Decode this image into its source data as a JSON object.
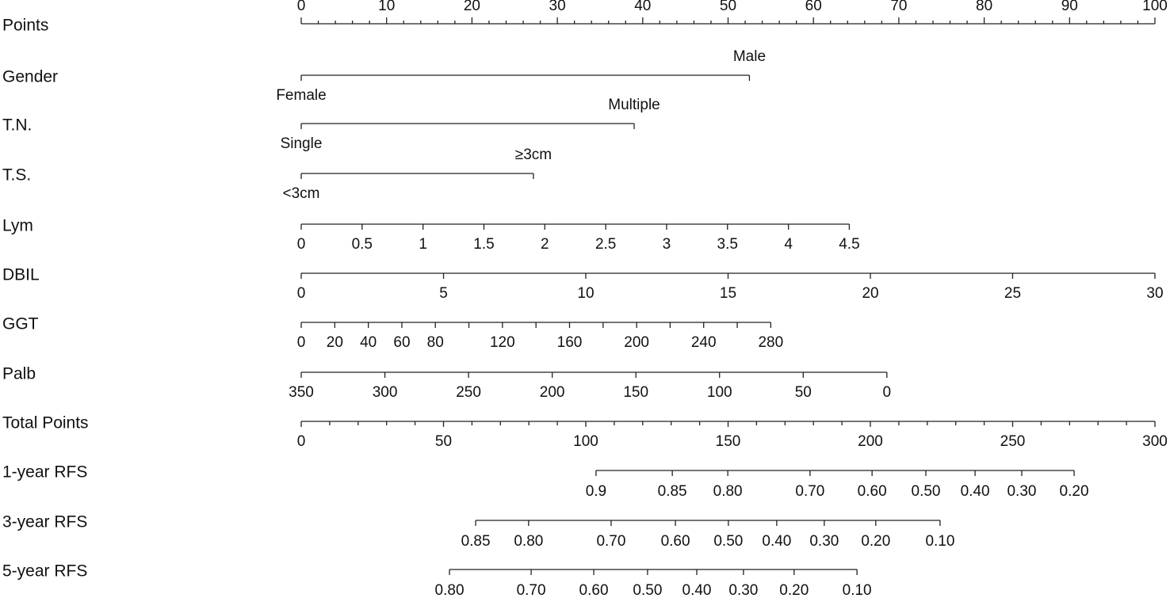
{
  "chart_data": {
    "type": "nomogram",
    "points_axis": {
      "name": "Points",
      "xlim": [
        0,
        100
      ],
      "xticks": [
        0,
        10,
        20,
        30,
        40,
        50,
        60,
        70,
        80,
        90,
        100
      ],
      "minor_ticks": [
        2,
        4,
        6,
        8,
        12,
        14,
        16,
        18,
        22,
        24,
        26,
        28,
        32,
        34,
        36,
        38,
        42,
        44,
        46,
        48,
        52,
        54,
        56,
        58,
        62,
        64,
        66,
        68,
        72,
        74,
        76,
        78,
        82,
        84,
        86,
        88,
        92,
        94,
        96,
        98
      ]
    },
    "variables": [
      {
        "name": "Gender",
        "kind": "categorical",
        "ticks": [
          {
            "value": 0,
            "label": "Female"
          },
          {
            "value": 52.5,
            "label": "Male"
          }
        ]
      },
      {
        "name": "T.N.",
        "kind": "categorical",
        "ticks": [
          {
            "value": 0,
            "label": "Single"
          },
          {
            "value": 39.0,
            "label": "Multiple"
          }
        ]
      },
      {
        "name": "T.S.",
        "kind": "categorical",
        "ticks": [
          {
            "value": 0,
            "label": "<3cm"
          },
          {
            "value": 27.2,
            "label": "≥3cm"
          }
        ]
      },
      {
        "name": "Lym",
        "kind": "continuous",
        "ticks": [
          {
            "value": 0,
            "label": "0"
          },
          {
            "value": 7.13,
            "label": "0.5"
          },
          {
            "value": 14.27,
            "label": "1"
          },
          {
            "value": 21.4,
            "label": "1.5"
          },
          {
            "value": 28.53,
            "label": "2"
          },
          {
            "value": 35.67,
            "label": "2.5"
          },
          {
            "value": 42.8,
            "label": "3"
          },
          {
            "value": 49.93,
            "label": "3.5"
          },
          {
            "value": 57.07,
            "label": "4"
          },
          {
            "value": 64.2,
            "label": "4.5"
          }
        ]
      },
      {
        "name": "DBIL",
        "kind": "continuous",
        "ticks": [
          {
            "value": 0,
            "label": "0"
          },
          {
            "value": 16.67,
            "label": "5"
          },
          {
            "value": 33.33,
            "label": "10"
          },
          {
            "value": 50,
            "label": "15"
          },
          {
            "value": 66.67,
            "label": "20"
          },
          {
            "value": 83.33,
            "label": "25"
          },
          {
            "value": 100,
            "label": "30"
          }
        ]
      },
      {
        "name": "GGT",
        "kind": "continuous",
        "ticks": [
          {
            "value": 0,
            "label": "0"
          },
          {
            "value": 3.93,
            "label": "20"
          },
          {
            "value": 7.86,
            "label": "40"
          },
          {
            "value": 11.79,
            "label": "60"
          },
          {
            "value": 15.71,
            "label": "80"
          },
          {
            "value": 23.57,
            "label": "120"
          },
          {
            "value": 31.43,
            "label": "160"
          },
          {
            "value": 39.29,
            "label": "200"
          },
          {
            "value": 47.14,
            "label": "240"
          },
          {
            "value": 55.0,
            "label": "280"
          }
        ],
        "minor_ticks": [
          19.64,
          27.5,
          35.36,
          43.21,
          51.07
        ]
      },
      {
        "name": "Palb",
        "kind": "continuous",
        "ticks": [
          {
            "value": 0,
            "label": "350"
          },
          {
            "value": 9.8,
            "label": "300"
          },
          {
            "value": 19.6,
            "label": "250"
          },
          {
            "value": 29.4,
            "label": "200"
          },
          {
            "value": 39.2,
            "label": "150"
          },
          {
            "value": 49.0,
            "label": "100"
          },
          {
            "value": 58.8,
            "label": "50"
          },
          {
            "value": 68.6,
            "label": "0"
          }
        ]
      }
    ],
    "total_axis": {
      "name": "Total Points",
      "xlim": [
        0,
        300
      ],
      "xticks": [
        0,
        50,
        100,
        150,
        200,
        250,
        300
      ],
      "minor_ticks": [
        10,
        20,
        30,
        40,
        60,
        70,
        80,
        90,
        110,
        120,
        130,
        140,
        160,
        170,
        180,
        190,
        210,
        220,
        230,
        240,
        260,
        270,
        280,
        290
      ]
    },
    "outcomes": [
      {
        "name": "1-year RFS",
        "ticks": [
          {
            "value": 103.6,
            "label": "0.9"
          },
          {
            "value": 130.4,
            "label": "0.85"
          },
          {
            "value": 149.9,
            "label": "0.80"
          },
          {
            "value": 178.8,
            "label": "0.70"
          },
          {
            "value": 200.6,
            "label": "0.60"
          },
          {
            "value": 219.5,
            "label": "0.50"
          },
          {
            "value": 236.8,
            "label": "0.40"
          },
          {
            "value": 253.2,
            "label": "0.30"
          },
          {
            "value": 271.6,
            "label": "0.20"
          }
        ]
      },
      {
        "name": "3-year RFS",
        "ticks": [
          {
            "value": 61.3,
            "label": "0.85"
          },
          {
            "value": 79.9,
            "label": "0.80"
          },
          {
            "value": 108.9,
            "label": "0.70"
          },
          {
            "value": 131.5,
            "label": "0.60"
          },
          {
            "value": 150.1,
            "label": "0.50"
          },
          {
            "value": 167.1,
            "label": "0.40"
          },
          {
            "value": 183.8,
            "label": "0.30"
          },
          {
            "value": 201.9,
            "label": "0.20"
          },
          {
            "value": 224.5,
            "label": "0.10"
          }
        ]
      },
      {
        "name": "5-year RFS",
        "ticks": [
          {
            "value": 52.1,
            "label": "0.80"
          },
          {
            "value": 80.8,
            "label": "0.70"
          },
          {
            "value": 102.8,
            "label": "0.60"
          },
          {
            "value": 121.7,
            "label": "0.50"
          },
          {
            "value": 139.0,
            "label": "0.40"
          },
          {
            "value": 155.4,
            "label": "0.30"
          },
          {
            "value": 173.2,
            "label": "0.20"
          },
          {
            "value": 195.3,
            "label": "0.10"
          }
        ]
      }
    ]
  }
}
